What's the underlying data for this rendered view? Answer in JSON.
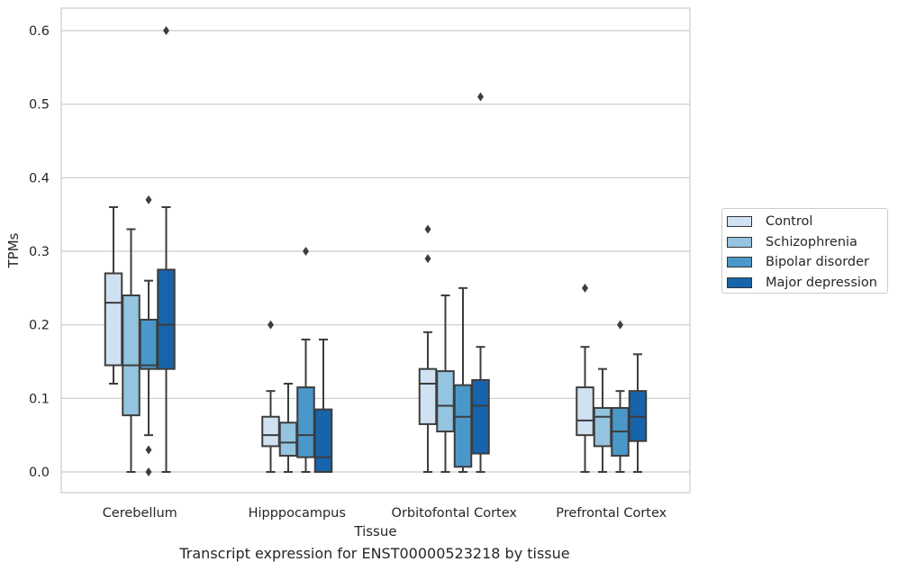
{
  "chart_data": {
    "type": "boxplot",
    "title": "",
    "caption": "Transcript expression for ENST00000523218 by tissue",
    "xlabel": "Tissue",
    "ylabel": "TPMs",
    "ylim": [
      -0.03,
      0.63
    ],
    "yticks": [
      "0.0",
      "0.1",
      "0.2",
      "0.3",
      "0.4",
      "0.5",
      "0.6"
    ],
    "grid": "horizontal",
    "legend_position": "right",
    "categories": [
      "Cerebellum",
      "Hipppocampus",
      "Orbitofontal Cortex",
      "Prefrontal Cortex"
    ],
    "series": [
      {
        "name": "Control",
        "color": "#d0e1f2",
        "boxes": [
          {
            "whisker_low": 0.12,
            "q1": 0.145,
            "median": 0.23,
            "q3": 0.27,
            "whisker_high": 0.36,
            "outliers": []
          },
          {
            "whisker_low": 0.0,
            "q1": 0.035,
            "median": 0.05,
            "q3": 0.075,
            "whisker_high": 0.11,
            "outliers": [
              0.2
            ]
          },
          {
            "whisker_low": 0.0,
            "q1": 0.065,
            "median": 0.12,
            "q3": 0.14,
            "whisker_high": 0.19,
            "outliers": [
              0.29,
              0.33
            ]
          },
          {
            "whisker_low": 0.0,
            "q1": 0.05,
            "median": 0.07,
            "q3": 0.115,
            "whisker_high": 0.17,
            "outliers": [
              0.25
            ]
          }
        ]
      },
      {
        "name": "Schizophrenia",
        "color": "#94c4df",
        "boxes": [
          {
            "whisker_low": 0.0,
            "q1": 0.077,
            "median": 0.145,
            "q3": 0.24,
            "whisker_high": 0.33,
            "outliers": []
          },
          {
            "whisker_low": 0.0,
            "q1": 0.022,
            "median": 0.04,
            "q3": 0.067,
            "whisker_high": 0.12,
            "outliers": []
          },
          {
            "whisker_low": 0.0,
            "q1": 0.055,
            "median": 0.09,
            "q3": 0.137,
            "whisker_high": 0.24,
            "outliers": []
          },
          {
            "whisker_low": 0.0,
            "q1": 0.035,
            "median": 0.075,
            "q3": 0.087,
            "whisker_high": 0.14,
            "outliers": []
          }
        ]
      },
      {
        "name": "Bipolar disorder",
        "color": "#4a98c9",
        "boxes": [
          {
            "whisker_low": 0.05,
            "q1": 0.14,
            "median": 0.145,
            "q3": 0.207,
            "whisker_high": 0.26,
            "outliers": [
              0.0,
              0.03,
              0.37
            ]
          },
          {
            "whisker_low": 0.0,
            "q1": 0.02,
            "median": 0.05,
            "q3": 0.115,
            "whisker_high": 0.18,
            "outliers": [
              0.3
            ]
          },
          {
            "whisker_low": 0.0,
            "q1": 0.007,
            "median": 0.075,
            "q3": 0.118,
            "whisker_high": 0.25,
            "outliers": []
          },
          {
            "whisker_low": 0.0,
            "q1": 0.022,
            "median": 0.055,
            "q3": 0.087,
            "whisker_high": 0.11,
            "outliers": [
              0.2
            ]
          }
        ]
      },
      {
        "name": "Major depression",
        "color": "#1764ab",
        "boxes": [
          {
            "whisker_low": 0.0,
            "q1": 0.14,
            "median": 0.2,
            "q3": 0.275,
            "whisker_high": 0.36,
            "outliers": [
              0.6
            ]
          },
          {
            "whisker_low": 0.0,
            "q1": 0.0,
            "median": 0.02,
            "q3": 0.085,
            "whisker_high": 0.18,
            "outliers": []
          },
          {
            "whisker_low": 0.0,
            "q1": 0.025,
            "median": 0.09,
            "q3": 0.125,
            "whisker_high": 0.17,
            "outliers": [
              0.51
            ]
          },
          {
            "whisker_low": 0.0,
            "q1": 0.042,
            "median": 0.075,
            "q3": 0.11,
            "whisker_high": 0.16,
            "outliers": []
          }
        ]
      }
    ]
  }
}
